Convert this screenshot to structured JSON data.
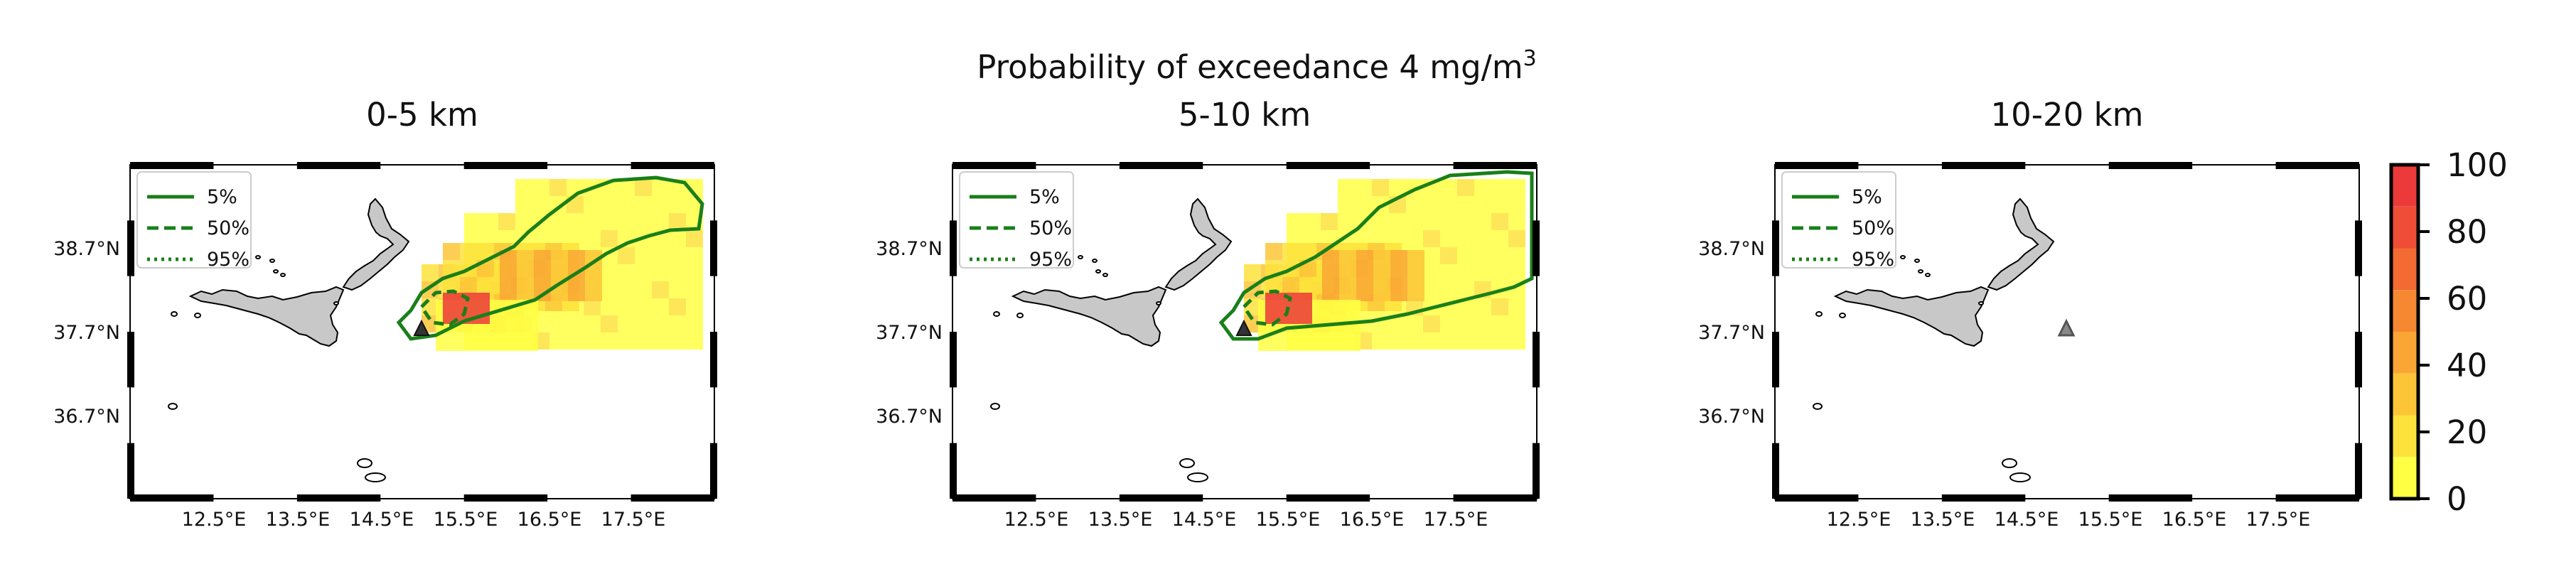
{
  "figure": {
    "title_main": "Probability of exceedance 4 mg/m",
    "title_sup": "3"
  },
  "panels": [
    {
      "title": "0-5 km"
    },
    {
      "title": "5-10 km"
    },
    {
      "title": "10-20 km"
    }
  ],
  "axes": {
    "x_ticks": [
      "12.5°E",
      "13.5°E",
      "14.5°E",
      "15.5°E",
      "16.5°E",
      "17.5°E"
    ],
    "y_ticks": [
      "38.7°N",
      "37.7°N",
      "36.7°N"
    ]
  },
  "legend": {
    "entries": [
      {
        "label": "5%",
        "style": "solid"
      },
      {
        "label": "50%",
        "style": "dashed"
      },
      {
        "label": "95%",
        "style": "dotted"
      }
    ],
    "line_color": "#1a7f1a"
  },
  "colorbar": {
    "ticks": [
      "0",
      "20",
      "40",
      "60",
      "80",
      "100"
    ],
    "min": 0,
    "max": 100,
    "colors": [
      "#ffff44",
      "#fee23c",
      "#fcc538",
      "#f9a634",
      "#f68832",
      "#f36a33",
      "#f04d37",
      "#ec3a3a"
    ]
  },
  "map": {
    "land_color": "#c8c8c8",
    "volcano_marker": "triangle"
  }
}
